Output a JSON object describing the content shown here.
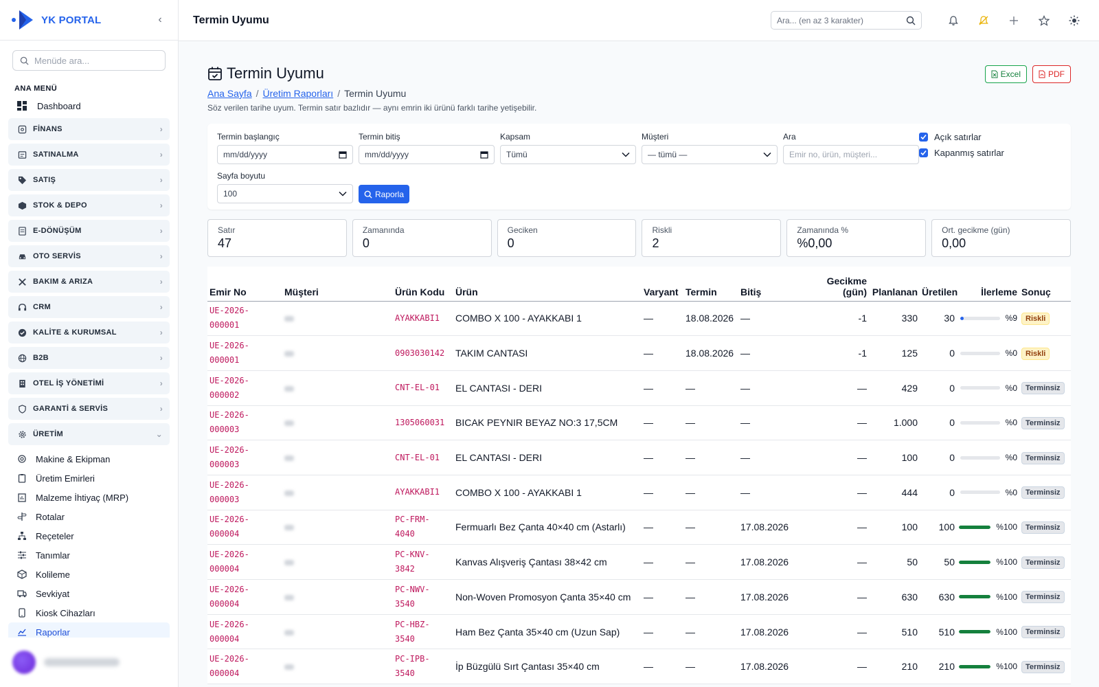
{
  "brand": {
    "name": "YK PORTAL"
  },
  "menu_search": {
    "placeholder": "Menüde ara..."
  },
  "menu": {
    "section": "ANA MENÜ",
    "dashboard": "Dashboard",
    "groups": [
      {
        "label": "FİNANS",
        "icon": "finance-icon"
      },
      {
        "label": "SATINALMA",
        "icon": "purchase-icon"
      },
      {
        "label": "SATIŞ",
        "icon": "tag-icon"
      },
      {
        "label": "STOK & DEPO",
        "icon": "box-icon"
      },
      {
        "label": "E-DÖNÜŞÜM",
        "icon": "document-icon"
      },
      {
        "label": "OTO SERVİS",
        "icon": "car-icon"
      },
      {
        "label": "BAKIM & ARIZA",
        "icon": "tools-icon"
      },
      {
        "label": "CRM",
        "icon": "headset-icon"
      },
      {
        "label": "KALİTE & KURUMSAL",
        "icon": "badge-check-icon"
      },
      {
        "label": "B2B",
        "icon": "globe-icon"
      },
      {
        "label": "OTEL İŞ YÖNETİMİ",
        "icon": "building-icon"
      },
      {
        "label": "GARANTİ & SERVİS",
        "icon": "shield-icon"
      },
      {
        "label": "ÜRETİM",
        "icon": "gear-icon"
      }
    ],
    "uretim_items": [
      "Makine & Ekipman",
      "Üretim Emirleri",
      "Malzeme İhtiyaç (MRP)",
      "Rotalar",
      "Reçeteler",
      "Tanımlar",
      "Kolileme",
      "Sevkiyat",
      "Kiosk Cihazları",
      "Raporlar"
    ]
  },
  "topbar": {
    "title": "Termin Uyumu",
    "search_placeholder": "Ara... (en az 3 karakter)"
  },
  "page": {
    "title": "Termin Uyumu",
    "breadcrumb": [
      "Ana Sayfa",
      "Üretim Raporları",
      "Termin Uyumu"
    ],
    "breadcrumb_sep": "/",
    "description": "Söz verilen tarihe uyum. Termin satır bazlıdır — aynı emrin iki ürünü farklı tarihe yetişebilir.",
    "excel": "Excel",
    "pdf": "PDF"
  },
  "filters": {
    "start_label": "Termin başlangıç",
    "start_value": "mm/dd/yyyy",
    "end_label": "Termin bitiş",
    "end_value": "mm/dd/yyyy",
    "scope_label": "Kapsam",
    "scope_value": "Tümü",
    "customer_label": "Müşteri",
    "customer_value": "— tümü —",
    "search_label": "Ara",
    "search_placeholder": "Emir no, ürün, müşteri...",
    "open_rows": "Açık satırlar",
    "closed_rows": "Kapanmış satırlar",
    "page_size_label": "Sayfa boyutu",
    "page_size_value": "100",
    "report_button": "Raporla"
  },
  "stats": [
    {
      "label": "Satır",
      "value": "47"
    },
    {
      "label": "Zamanında",
      "value": "0"
    },
    {
      "label": "Geciken",
      "value": "0"
    },
    {
      "label": "Riskli",
      "value": "2"
    },
    {
      "label": "Zamanında %",
      "value": "%0,00"
    },
    {
      "label": "Ort. gecikme (gün)",
      "value": "0,00"
    }
  ],
  "table": {
    "headers": [
      "Emir No",
      "Müşteri",
      "Ürün Kodu",
      "Ürün",
      "Varyant",
      "Termin",
      "Bitiş",
      "Gecikme (gün)",
      "Planlanan",
      "Üretilen",
      "İlerleme",
      "Sonuç"
    ],
    "rows": [
      {
        "emir": "UE-2026-000001",
        "kod": "AYAKKABI1",
        "urun": "COMBO X 100 - AYAKKABI 1",
        "varyant": "—",
        "termin": "18.08.2026",
        "bitis": "—",
        "gecikme": "-1",
        "plan": "330",
        "uretilen": "30",
        "ilerleme": "%9",
        "pct": 9,
        "sonuc": "Riskli"
      },
      {
        "emir": "UE-2026-000001",
        "kod": "0903030142",
        "urun": "TAKIM CANTASI",
        "varyant": "—",
        "termin": "18.08.2026",
        "bitis": "—",
        "gecikme": "-1",
        "plan": "125",
        "uretilen": "0",
        "ilerleme": "%0",
        "pct": 0,
        "sonuc": "Riskli"
      },
      {
        "emir": "UE-2026-000002",
        "kod": "CNT-EL-01",
        "urun": "EL CANTASI - DERI",
        "varyant": "—",
        "termin": "—",
        "bitis": "—",
        "gecikme": "—",
        "plan": "429",
        "uretilen": "0",
        "ilerleme": "%0",
        "pct": 0,
        "sonuc": "Terminsiz"
      },
      {
        "emir": "UE-2026-000003",
        "kod": "1305060031",
        "urun": "BICAK PEYNIR BEYAZ NO:3 17,5CM",
        "varyant": "—",
        "termin": "—",
        "bitis": "—",
        "gecikme": "—",
        "plan": "1.000",
        "uretilen": "0",
        "ilerleme": "%0",
        "pct": 0,
        "sonuc": "Terminsiz"
      },
      {
        "emir": "UE-2026-000003",
        "kod": "CNT-EL-01",
        "urun": "EL CANTASI - DERI",
        "varyant": "—",
        "termin": "—",
        "bitis": "—",
        "gecikme": "—",
        "plan": "100",
        "uretilen": "0",
        "ilerleme": "%0",
        "pct": 0,
        "sonuc": "Terminsiz"
      },
      {
        "emir": "UE-2026-000003",
        "kod": "AYAKKABI1",
        "urun": "COMBO X 100 - AYAKKABI 1",
        "varyant": "—",
        "termin": "—",
        "bitis": "—",
        "gecikme": "—",
        "plan": "444",
        "uretilen": "0",
        "ilerleme": "%0",
        "pct": 0,
        "sonuc": "Terminsiz"
      },
      {
        "emir": "UE-2026-000004",
        "kod": "PC-FRM-4040",
        "urun": "Fermuarlı Bez Çanta 40×40 cm (Astarlı)",
        "varyant": "—",
        "termin": "—",
        "bitis": "17.08.2026",
        "gecikme": "—",
        "plan": "100",
        "uretilen": "100",
        "ilerleme": "%100",
        "pct": 100,
        "sonuc": "Terminsiz"
      },
      {
        "emir": "UE-2026-000004",
        "kod": "PC-KNV-3842",
        "urun": "Kanvas Alışveriş Çantası 38×42 cm",
        "varyant": "—",
        "termin": "—",
        "bitis": "17.08.2026",
        "gecikme": "—",
        "plan": "50",
        "uretilen": "50",
        "ilerleme": "%100",
        "pct": 100,
        "sonuc": "Terminsiz"
      },
      {
        "emir": "UE-2026-000004",
        "kod": "PC-NWV-3540",
        "urun": "Non-Woven Promosyon Çanta 35×40 cm",
        "varyant": "—",
        "termin": "—",
        "bitis": "17.08.2026",
        "gecikme": "—",
        "plan": "630",
        "uretilen": "630",
        "ilerleme": "%100",
        "pct": 100,
        "sonuc": "Terminsiz"
      },
      {
        "emir": "UE-2026-000004",
        "kod": "PC-HBZ-3540",
        "urun": "Ham Bez Çanta 35×40 cm (Uzun Sap)",
        "varyant": "—",
        "termin": "—",
        "bitis": "17.08.2026",
        "gecikme": "—",
        "plan": "510",
        "uretilen": "510",
        "ilerleme": "%100",
        "pct": 100,
        "sonuc": "Terminsiz"
      },
      {
        "emir": "UE-2026-000004",
        "kod": "PC-IPB-3540",
        "urun": "İp Büzgülü Sırt Çantası 35×40 cm",
        "varyant": "—",
        "termin": "—",
        "bitis": "17.08.2026",
        "gecikme": "—",
        "plan": "210",
        "uretilen": "210",
        "ilerleme": "%100",
        "pct": 100,
        "sonuc": "Terminsiz"
      }
    ]
  },
  "colors": {
    "accent": "#2563eb",
    "code": "#be185d",
    "progress_low": "#2563eb",
    "progress_done": "#15803d"
  }
}
